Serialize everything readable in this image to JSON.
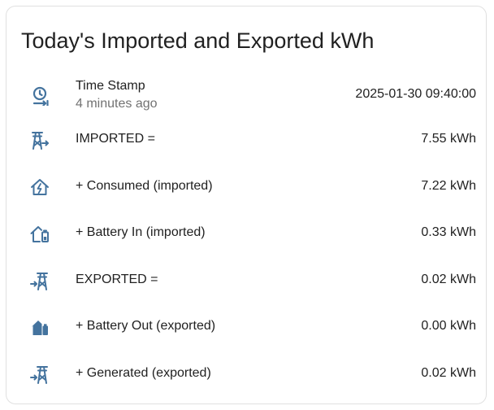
{
  "card": {
    "title": "Today's Imported and Exported kWh"
  },
  "colors": {
    "icon": "#44739e",
    "text": "#212121",
    "secondary_text": "#727272",
    "border": "#e0e0e0"
  },
  "rows": [
    {
      "icon": "clock-arrow-icon",
      "label": "Time Stamp",
      "secondary": "4 minutes ago",
      "value": "2025-01-30 09:40:00"
    },
    {
      "icon": "transmission-tower-export-icon",
      "label": "IMPORTED =",
      "value": "7.55 kWh"
    },
    {
      "icon": "home-lightning-icon",
      "label": "+ Consumed (imported)",
      "value": "7.22 kWh"
    },
    {
      "icon": "home-battery-outline-icon",
      "label": "+ Battery In (imported)",
      "value": "0.33 kWh"
    },
    {
      "icon": "transmission-tower-import-icon",
      "label": "EXPORTED =",
      "value": "0.02 kWh"
    },
    {
      "icon": "home-battery-icon",
      "label": "+ Battery Out (exported)",
      "value": "0.00 kWh"
    },
    {
      "icon": "transmission-tower-import-icon",
      "label": "+ Generated (exported)",
      "value": "0.02 kWh"
    }
  ]
}
